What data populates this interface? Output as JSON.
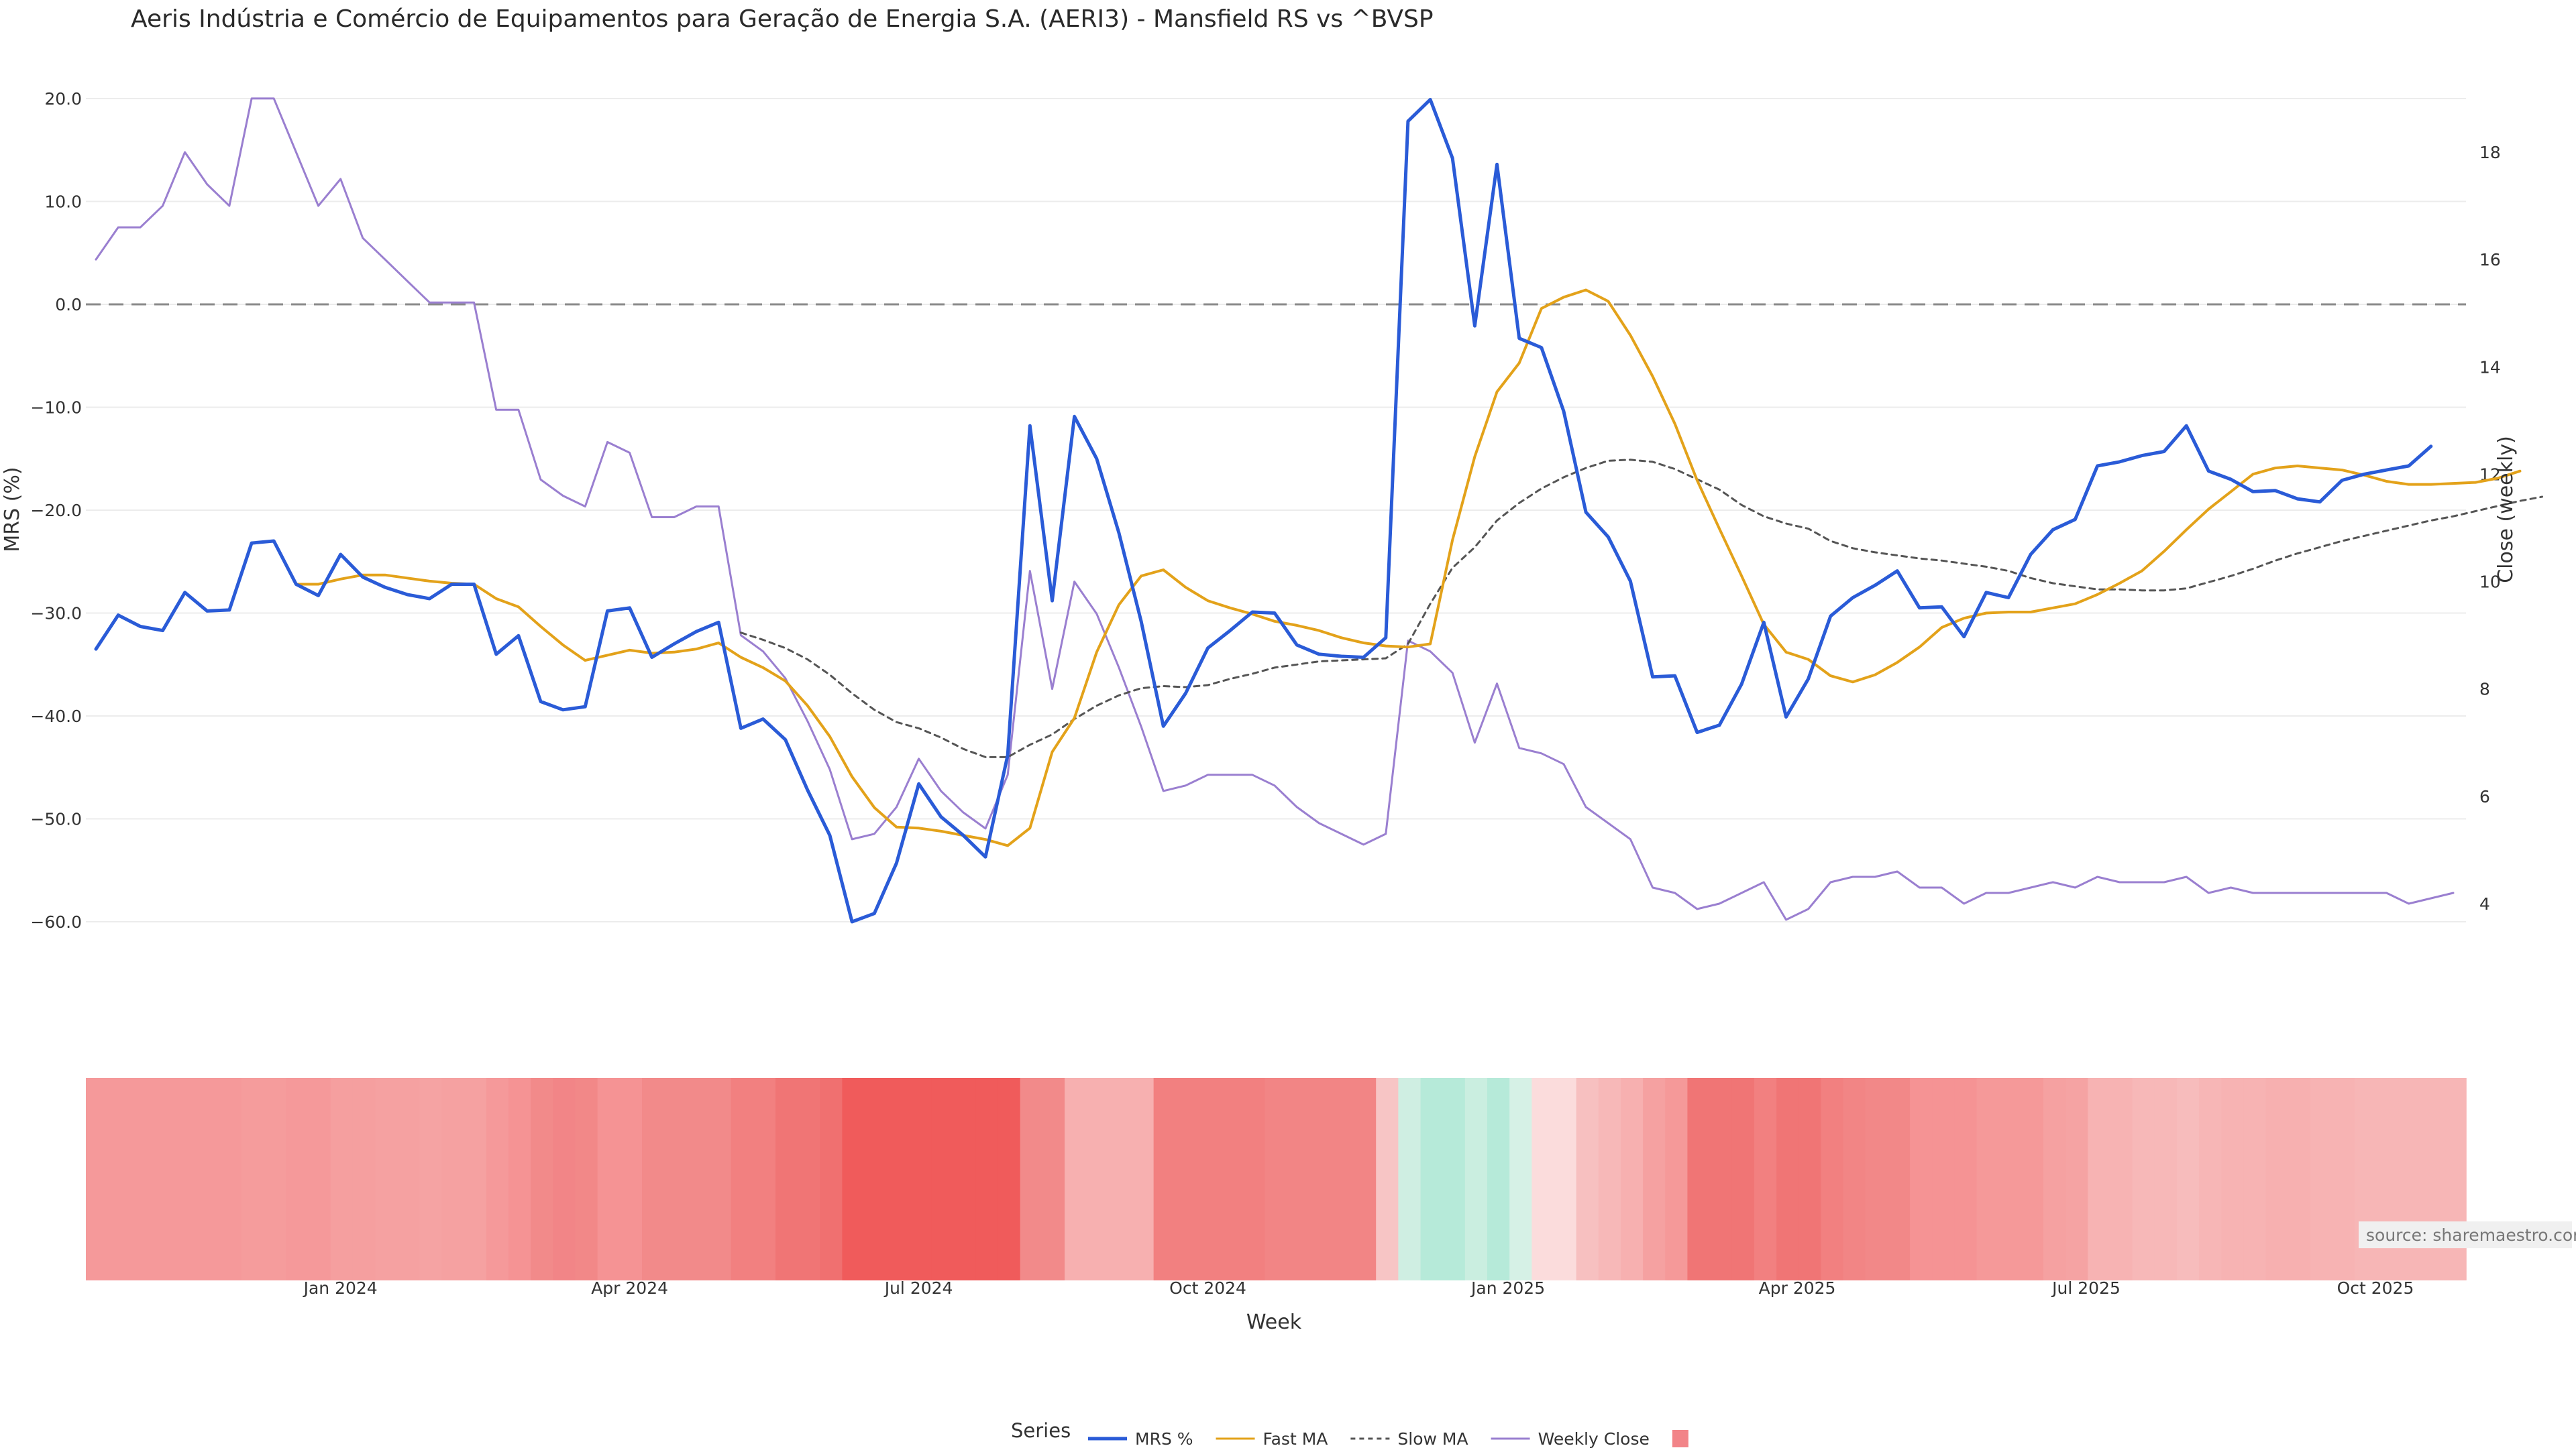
{
  "chart_data": {
    "type": "line",
    "title": "Aeris Indústria e Comércio de Equipamentos para Geração de Energia S.A. (AERI3) - Mansfield RS vs ^BVSP",
    "xlabel": "Week",
    "ylabel_left": "MRS (%)",
    "ylabel_right": "Close (weekly)",
    "source": "source: sharemaestro.com",
    "legend_title": "Series",
    "legend_position": "bottom-center",
    "ylim_left": [
      -60,
      20
    ],
    "ylim_right": [
      3.8,
      19
    ],
    "y_ticks_left": [
      "20.0",
      "10.0",
      "0.0",
      "−10.0",
      "−20.0",
      "−30.0",
      "−40.0",
      "−50.0",
      "−60.0"
    ],
    "y_tick_values_left": [
      20,
      10,
      0,
      -10,
      -20,
      -30,
      -40,
      -50,
      -60
    ],
    "y_ticks_right": [
      "18",
      "16",
      "14",
      "12",
      "10",
      "8",
      "6",
      "4"
    ],
    "y_tick_values_right": [
      18,
      16,
      14,
      12,
      10,
      8,
      6,
      4
    ],
    "x_tick_labels": [
      "Jan 2024",
      "Apr 2024",
      "Jul 2024",
      "Oct 2024",
      "Jan 2025",
      "Apr 2025",
      "Jul 2025",
      "Oct 2025"
    ],
    "x_tick_weeks": [
      11,
      24,
      37,
      50,
      63.5,
      76.5,
      89.5,
      102.5
    ],
    "reference_line": 0,
    "grid": true,
    "weeks": 107,
    "series": [
      {
        "name": "MRS %",
        "color": "#2a5bd7",
        "axis": "left",
        "start_week": 0,
        "values": [
          -33.5,
          -30.2,
          -31.3,
          -31.7,
          -28.0,
          -29.8,
          -29.7,
          -23.2,
          -23.0,
          -27.2,
          -28.3,
          -24.3,
          -26.5,
          -27.5,
          -28.2,
          -28.6,
          -27.2,
          -27.2,
          -34.0,
          -32.2,
          -38.6,
          -39.4,
          -39.1,
          -29.8,
          -29.5,
          -34.3,
          -33.0,
          -31.8,
          -30.9,
          -41.2,
          -40.3,
          -42.3,
          -47.2,
          -51.6,
          -60.0,
          -59.2,
          -54.3,
          -46.6,
          -49.8,
          -51.6,
          -53.7,
          -43.8,
          -11.8,
          -28.8,
          -10.9,
          -15.0,
          -22.2,
          -30.8,
          -41.0,
          -37.8,
          -33.4,
          -31.7,
          -29.9,
          -30.0,
          -33.1,
          -34.0,
          -34.2,
          -34.3,
          -32.4,
          17.8,
          19.9,
          14.2,
          -2.1,
          13.6,
          -3.3,
          -4.2,
          -10.4,
          -20.2,
          -22.6,
          -26.9,
          -36.2,
          -36.1,
          -41.6,
          -40.9,
          -36.9,
          -30.9,
          -40.1,
          -36.4,
          -30.3,
          -28.5,
          -27.3,
          -25.9,
          -29.5,
          -29.4,
          -32.3,
          -28.0,
          -28.5,
          -24.3,
          -21.9,
          -20.9,
          -15.7,
          -15.3,
          -14.7,
          -14.3,
          -11.8,
          -16.2,
          -17.0,
          -18.2,
          -18.1,
          -18.9,
          -19.2,
          -17.1,
          -16.5,
          -16.1,
          -15.7,
          -13.8
        ]
      },
      {
        "name": "Fast MA",
        "color": "#e3a21a",
        "axis": "left",
        "start_week": 9,
        "values": [
          -27.2,
          -27.2,
          -26.7,
          -26.3,
          -26.3,
          -26.6,
          -26.9,
          -27.1,
          -27.2,
          -28.6,
          -29.4,
          -31.3,
          -33.1,
          -34.6,
          -34.1,
          -33.6,
          -33.9,
          -33.8,
          -33.5,
          -32.9,
          -34.3,
          -35.3,
          -36.6,
          -39.0,
          -42.0,
          -45.9,
          -48.9,
          -50.8,
          -50.9,
          -51.2,
          -51.6,
          -52.0,
          -52.6,
          -50.9,
          -43.5,
          -40.2,
          -33.8,
          -29.2,
          -26.4,
          -25.8,
          -27.5,
          -28.8,
          -29.5,
          -30.1,
          -30.8,
          -31.2,
          -31.7,
          -32.4,
          -32.9,
          -33.2,
          -33.3,
          -33.0,
          -22.9,
          -14.8,
          -8.5,
          -5.7,
          -0.4,
          0.7,
          1.4,
          0.3,
          -3.0,
          -7.0,
          -11.6,
          -17.1,
          -21.8,
          -26.4,
          -31.1,
          -33.8,
          -34.5,
          -36.1,
          -36.7,
          -36.0,
          -34.8,
          -33.3,
          -31.4,
          -30.5,
          -30.0,
          -29.9,
          -29.9,
          -29.5,
          -29.1,
          -28.2,
          -27.1,
          -25.9,
          -24.0,
          -21.9,
          -19.9,
          -18.2,
          -16.5,
          -15.9,
          -15.7,
          -15.9,
          -16.1,
          -16.6,
          -17.2,
          -17.5,
          -17.5,
          -17.4,
          -17.3,
          -16.9,
          -16.2
        ]
      },
      {
        "name": "Slow MA",
        "color": "#555555",
        "axis": "left",
        "dashed": true,
        "start_week": 29,
        "values": [
          -31.9,
          -32.6,
          -33.4,
          -34.5,
          -36.0,
          -37.8,
          -39.4,
          -40.6,
          -41.2,
          -42.1,
          -43.2,
          -44.0,
          -44.0,
          -42.8,
          -41.8,
          -40.3,
          -39.0,
          -38.0,
          -37.3,
          -37.1,
          -37.2,
          -37.0,
          -36.4,
          -35.9,
          -35.3,
          -35.0,
          -34.7,
          -34.6,
          -34.5,
          -34.4,
          -33.0,
          -29.1,
          -25.6,
          -23.6,
          -21.0,
          -19.3,
          -17.9,
          -16.8,
          -15.9,
          -15.2,
          -15.1,
          -15.3,
          -16.0,
          -17.0,
          -18.0,
          -19.5,
          -20.6,
          -21.3,
          -21.8,
          -23.0,
          -23.7,
          -24.1,
          -24.4,
          -24.7,
          -24.9,
          -25.2,
          -25.5,
          -25.9,
          -26.6,
          -27.1,
          -27.4,
          -27.7,
          -27.7,
          -27.8,
          -27.8,
          -27.6,
          -27.0,
          -26.4,
          -25.7,
          -24.9,
          -24.2,
          -23.6,
          -23.0,
          -22.5,
          -22.0,
          -21.5,
          -21.0,
          -20.6,
          -20.1,
          -19.6,
          -19.1,
          -18.7
        ]
      },
      {
        "name": "Weekly Close",
        "color": "#9a7fd0",
        "axis": "right",
        "start_week": 0,
        "values": [
          16.0,
          16.6,
          16.6,
          17.0,
          18.0,
          17.4,
          17.0,
          19.0,
          19.0,
          18.0,
          17.0,
          17.5,
          16.4,
          16.0,
          15.6,
          15.2,
          15.2,
          15.2,
          13.2,
          13.2,
          11.9,
          11.6,
          11.4,
          12.6,
          12.4,
          11.2,
          11.2,
          11.4,
          11.4,
          9.0,
          8.7,
          8.2,
          7.4,
          6.5,
          5.2,
          5.3,
          5.8,
          6.7,
          6.1,
          5.7,
          5.4,
          6.4,
          10.2,
          8.0,
          10.0,
          9.4,
          8.4,
          7.3,
          6.1,
          6.2,
          6.4,
          6.4,
          6.4,
          6.2,
          5.8,
          5.5,
          5.3,
          5.1,
          5.3,
          8.9,
          8.7,
          8.3,
          7.0,
          8.1,
          6.9,
          6.8,
          6.6,
          5.8,
          5.5,
          5.2,
          4.3,
          4.2,
          3.9,
          4.0,
          4.2,
          4.4,
          3.7,
          3.9,
          4.4,
          4.5,
          4.5,
          4.6,
          4.3,
          4.3,
          4.0,
          4.2,
          4.2,
          4.3,
          4.4,
          4.3,
          4.5,
          4.4,
          4.4,
          4.4,
          4.5,
          4.2,
          4.3,
          4.2,
          4.2,
          4.2,
          4.2,
          4.2,
          4.2,
          4.2,
          4.0,
          4.1,
          4.2
        ]
      }
    ],
    "heatmap": {
      "colors": [
        "#f5999a",
        "#f5999a",
        "#f5999a",
        "#f5999a",
        "#f5999a",
        "#f5999a",
        "#f5999a",
        "#f59c9c",
        "#f59c9c",
        "#f5999a",
        "#f5999a",
        "#f59f9f",
        "#f59f9f",
        "#f5a1a1",
        "#f5a1a1",
        "#f5a3a3",
        "#f5a1a1",
        "#f5a1a1",
        "#f5999a",
        "#f59394",
        "#f28a8a",
        "#f28587",
        "#f28888",
        "#f59394",
        "#f59394",
        "#f28a8a",
        "#f28a8a",
        "#f28a8a",
        "#f28a8a",
        "#f28080",
        "#f28080",
        "#f07575",
        "#f07575",
        "#f07070",
        "#f05b5b",
        "#f05b5b",
        "#f05b5b",
        "#f05b5b",
        "#f05b5b",
        "#f05b5b",
        "#f05b5b",
        "#f05b5b",
        "#f28a8a",
        "#f28a8a",
        "#f7b0b0",
        "#f7b0b0",
        "#f7b0b0",
        "#f7b0b0",
        "#f28080",
        "#f28080",
        "#f28080",
        "#f28080",
        "#f28080",
        "#f28585",
        "#f28585",
        "#f28585",
        "#f28585",
        "#f28585",
        "#f7c5c5",
        "#cfeee2",
        "#b6ead9",
        "#b6ead9",
        "#caeee0",
        "#b6ead9",
        "#d6f1e6",
        "#fbdcdc",
        "#fbdcdc",
        "#f7c0c0",
        "#f7b8b8",
        "#f7b0b0",
        "#f5a1a1",
        "#f59999",
        "#f07575",
        "#f07575",
        "#f07575",
        "#f28080",
        "#f07575",
        "#f07575",
        "#f28080",
        "#f28585",
        "#f28888",
        "#f28888",
        "#f59394",
        "#f59394",
        "#f59394",
        "#f59999",
        "#f59999",
        "#f59999",
        "#f5a1a1",
        "#f5a3a3",
        "#f7b3b3",
        "#f7b3b3",
        "#f7b8b8",
        "#f7b8b8",
        "#f7bcbc",
        "#f7b6b6",
        "#f7b3b3",
        "#f7b3b3",
        "#f7b0b0",
        "#f7b0b0",
        "#f7b3b3",
        "#f7b3b3",
        "#f7b6b6",
        "#f7b6b6",
        "#f7b6b6",
        "#f7b6b6",
        "#f7b6b6"
      ]
    }
  }
}
